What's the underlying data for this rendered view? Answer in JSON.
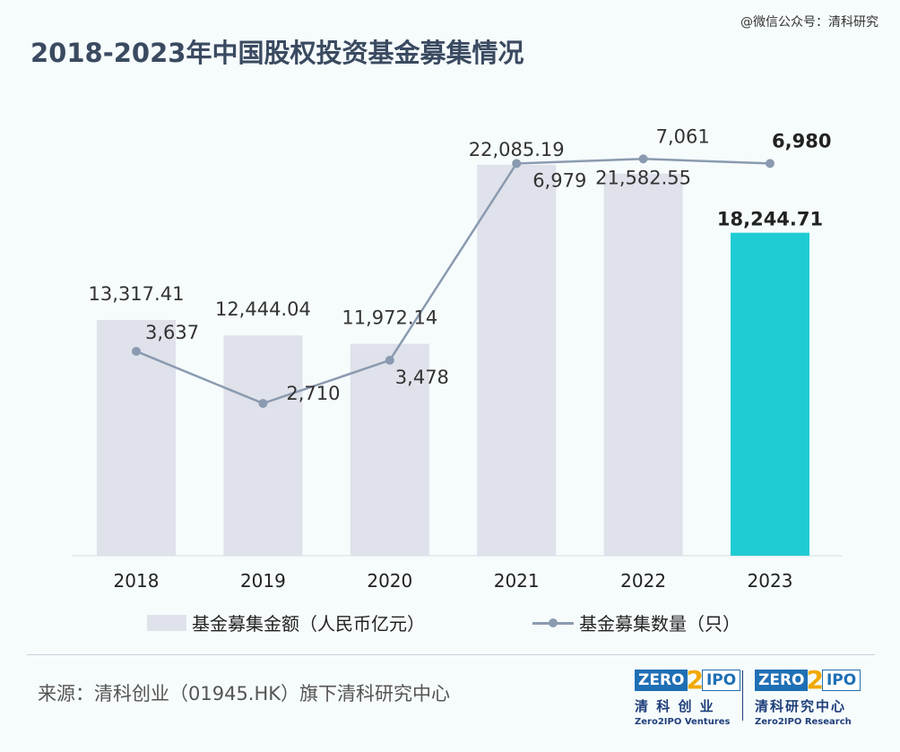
{
  "watermark": "@微信公众号：清科研究",
  "title": "2018-2023年中国股权投资基金募集情况",
  "chart_data": {
    "type": "bar",
    "categories": [
      "2018",
      "2019",
      "2020",
      "2021",
      "2022",
      "2023"
    ],
    "series": [
      {
        "name": "基金募集金额（人民币亿元）",
        "type": "bar",
        "values": [
          13317.41,
          12444.04,
          11972.14,
          22085.19,
          21582.55,
          18244.71
        ],
        "labels": [
          "13,317.41",
          "12,444.04",
          "11,972.14",
          "22,085.19",
          "21,582.55",
          "18,244.71"
        ],
        "color": "#dfe2ea",
        "highlight_color": "#20ccd4"
      },
      {
        "name": "基金募集数量（只）",
        "type": "line",
        "values": [
          3637,
          2710,
          3478,
          6979,
          7061,
          6980
        ],
        "labels": [
          "3,637",
          "2,710",
          "3,478",
          "6,979",
          "7,061",
          "6,980"
        ],
        "color": "#8a9ab0"
      }
    ],
    "highlight_index": 5,
    "legend_position": "bottom"
  },
  "legend": {
    "bar_label": "基金募集金额（人民币亿元）",
    "line_label": "基金募集数量（只）"
  },
  "source": "来源：清科创业（01945.HK）旗下清科研究中心",
  "logos": [
    {
      "zero": "ZERO",
      "two": "2",
      "ipo": "IPO",
      "cn": "清 科 创 业",
      "en": "Zero2IPO Ventures"
    },
    {
      "zero": "ZERO",
      "two": "2",
      "ipo": "IPO",
      "cn": "清科研究中心",
      "en": "Zero2IPO Research"
    }
  ]
}
